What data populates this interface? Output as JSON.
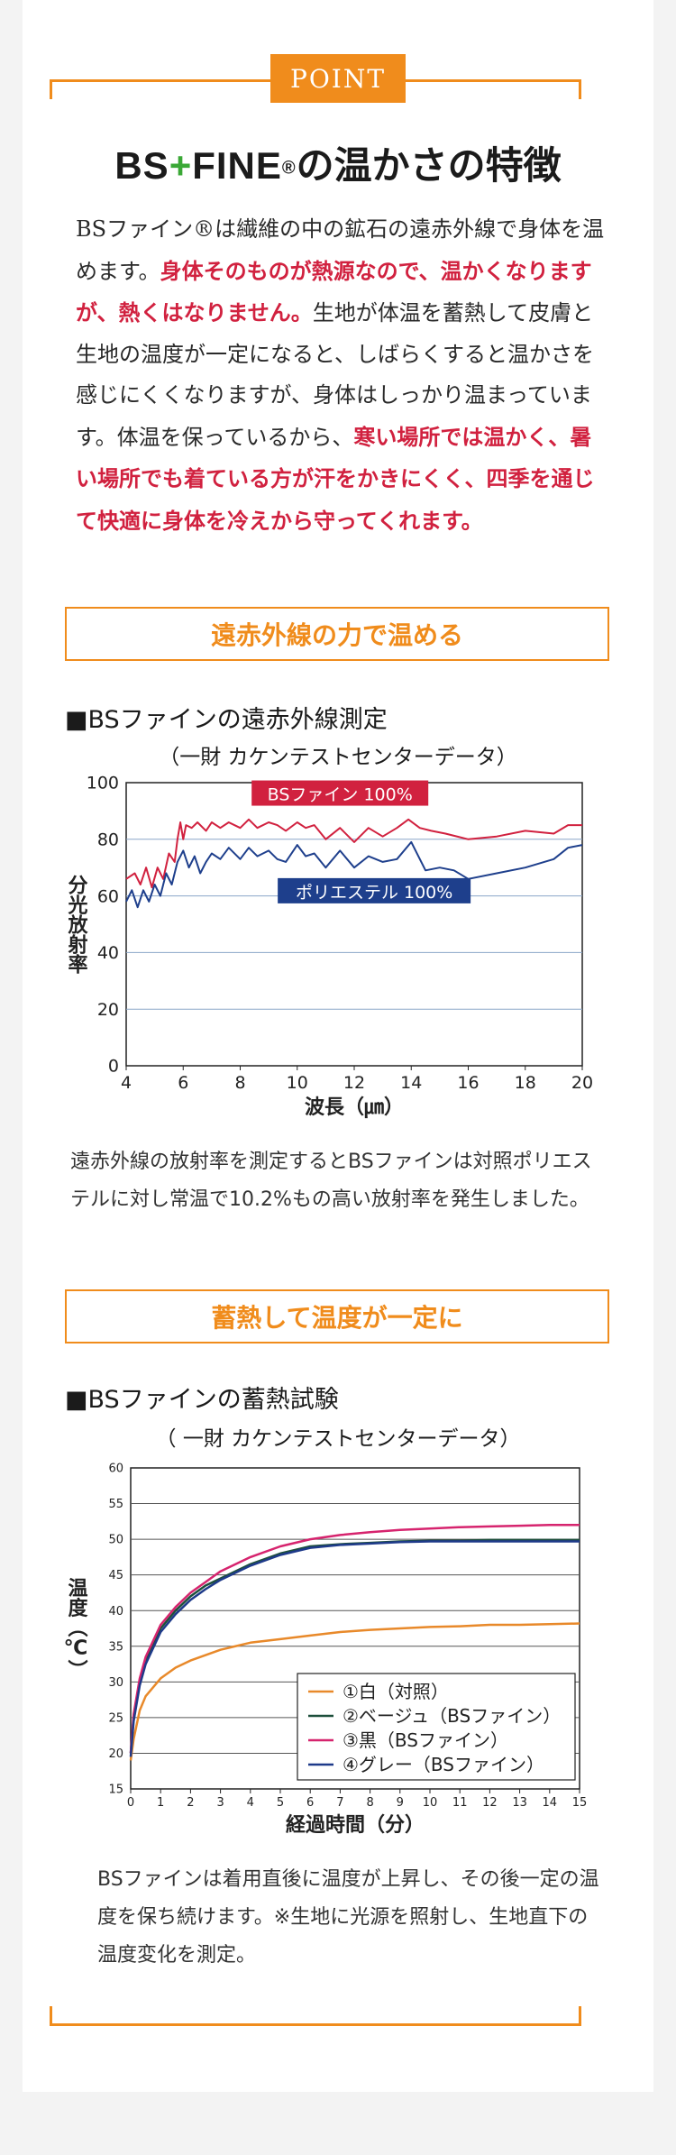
{
  "point_badge": "POINT",
  "heading": {
    "logo_bs": "BS",
    "logo_plus": "+",
    "logo_fine": "FINE",
    "logo_reg": "®",
    "rest": "の温かさの特徴"
  },
  "intro": {
    "p1": "BSファイン®は繊維の中の鉱石の遠赤外線で身体を温めます。",
    "p2_red": "身体そのものが熱源なので、温かくなりますが、熱くはなりません。",
    "p3": "生地が体温を蓄熱して皮膚と生地の温度が一定になると、しばらくすると温かさを感じにくくなりますが、身体はしっかり温まっています。体温を保っているから、",
    "p4_red": "寒い場所では温かく、暑い場所でも着ている方が汗をかきにくく、四季を通じて快適に身体を冷えから守ってくれます。"
  },
  "section1": {
    "label": "遠赤外線の力で温める",
    "chart_title": "■BSファインの遠赤外線測定",
    "chart_subtitle": "（一財 カケンテストセンターデータ）",
    "description": "遠赤外線の放射率を測定するとBSファインは対照ポリエステルに対し常温で10.2%もの高い放射率を発生しました。"
  },
  "section2": {
    "label": "蓄熱して温度が一定に",
    "chart_title": "■BSファインの蓄熱試験",
    "chart_subtitle": "（ 一財 カケンテストセンターデータ）",
    "description": "BSファインは着用直後に温度が上昇し、その後一定の温度を保ち続けます。※生地に光源を照射し、生地直下の温度変化を測定。"
  },
  "colors": {
    "accent": "#f08c1c",
    "red": "#d1213f",
    "navy": "#1e3f8c",
    "green": "#1d4f3b",
    "pink": "#d6246e",
    "orange_line": "#e8892a"
  },
  "chart_data": [
    {
      "type": "line",
      "xlabel": "波長（㎛）",
      "ylabel": "分光放射率",
      "xlim": [
        4,
        20
      ],
      "ylim": [
        0,
        100
      ],
      "xticks": [
        4,
        6,
        8,
        10,
        12,
        14,
        16,
        18,
        20
      ],
      "yticks": [
        0,
        20,
        40,
        60,
        80,
        100
      ],
      "grid": true,
      "series": [
        {
          "name": "BSファイン 100%",
          "color": "#d1213f",
          "x": [
            4,
            4.3,
            4.5,
            4.7,
            4.9,
            5.1,
            5.3,
            5.5,
            5.7,
            5.8,
            5.9,
            6.0,
            6.1,
            6.3,
            6.5,
            6.8,
            7.0,
            7.3,
            7.6,
            8.0,
            8.3,
            8.6,
            9.0,
            9.3,
            9.6,
            10.0,
            10.3,
            10.6,
            11.0,
            11.5,
            12.0,
            12.5,
            13.0,
            13.5,
            13.9,
            14.3,
            14.7,
            15.2,
            16.0,
            17.0,
            18.0,
            19.0,
            19.5,
            20.0
          ],
          "y": [
            66,
            68,
            64,
            70,
            63,
            70,
            66,
            75,
            72,
            80,
            86,
            80,
            85,
            84,
            86,
            83,
            86,
            84,
            86,
            84,
            87,
            84,
            86,
            85,
            83,
            86,
            84,
            85,
            80,
            84,
            79,
            84,
            81,
            84,
            87,
            84,
            83,
            82,
            80,
            81,
            83,
            82,
            85,
            85
          ]
        },
        {
          "name": "ポリエステル 100%",
          "color": "#1e3f8c",
          "x": [
            4,
            4.2,
            4.4,
            4.6,
            4.8,
            5.0,
            5.2,
            5.4,
            5.6,
            5.8,
            6.0,
            6.2,
            6.4,
            6.6,
            6.8,
            7.0,
            7.3,
            7.6,
            8.0,
            8.3,
            8.6,
            9.0,
            9.3,
            9.6,
            10.0,
            10.3,
            10.6,
            11.0,
            11.5,
            12.0,
            12.5,
            13.0,
            13.5,
            14.0,
            14.5,
            15.0,
            15.5,
            16.0,
            17.0,
            18.0,
            19.0,
            19.5,
            20.0
          ],
          "y": [
            58,
            62,
            56,
            62,
            58,
            64,
            60,
            68,
            64,
            72,
            76,
            70,
            74,
            68,
            72,
            75,
            73,
            77,
            73,
            77,
            74,
            76,
            73,
            72,
            78,
            74,
            75,
            70,
            76,
            70,
            74,
            72,
            73,
            79,
            69,
            70,
            69,
            66,
            68,
            70,
            73,
            77,
            78
          ]
        }
      ]
    },
    {
      "type": "line",
      "xlabel": "経過時間（分）",
      "ylabel": "温度（℃）",
      "xlim": [
        0,
        15
      ],
      "ylim": [
        15,
        60
      ],
      "xticks": [
        0,
        1,
        2,
        3,
        4,
        5,
        6,
        7,
        8,
        9,
        10,
        11,
        12,
        13,
        14,
        15
      ],
      "yticks": [
        15,
        20,
        25,
        30,
        35,
        40,
        45,
        50,
        55,
        60
      ],
      "grid": true,
      "legend": "bottom-right",
      "series": [
        {
          "name": "①白（対照）",
          "color": "#e8892a",
          "x": [
            0,
            0.1,
            0.3,
            0.5,
            1,
            1.5,
            2,
            3,
            4,
            5,
            6,
            7,
            8,
            9,
            10,
            11,
            12,
            13,
            14,
            15
          ],
          "y": [
            19,
            22,
            26,
            28,
            30.5,
            32,
            33,
            34.5,
            35.5,
            36,
            36.5,
            37,
            37.3,
            37.5,
            37.7,
            37.8,
            38,
            38,
            38.1,
            38.2
          ]
        },
        {
          "name": "②ベージュ（BSファイン）",
          "color": "#1d4f3b",
          "x": [
            0,
            0.1,
            0.3,
            0.5,
            1,
            1.5,
            2,
            2.5,
            3,
            4,
            5,
            6,
            7,
            8,
            9,
            10,
            11,
            12,
            13,
            14,
            15
          ],
          "y": [
            20,
            25,
            30,
            33,
            37.5,
            40,
            42,
            43.5,
            44.5,
            46.5,
            48,
            49,
            49.3,
            49.5,
            49.7,
            49.8,
            49.8,
            49.9,
            49.9,
            49.9,
            49.9
          ]
        },
        {
          "name": "③黒（BSファイン）",
          "color": "#d6246e",
          "x": [
            0,
            0.1,
            0.3,
            0.5,
            1,
            1.5,
            2,
            2.5,
            3,
            4,
            5,
            6,
            7,
            8,
            9,
            10,
            11,
            12,
            13,
            14,
            15
          ],
          "y": [
            20,
            25.5,
            30.5,
            33.5,
            38,
            40.5,
            42.5,
            44,
            45.5,
            47.5,
            49,
            50,
            50.6,
            51,
            51.3,
            51.5,
            51.7,
            51.8,
            51.9,
            52,
            52
          ]
        },
        {
          "name": "④グレー（BSファイン）",
          "color": "#1e3a8a",
          "x": [
            0,
            0.1,
            0.3,
            0.5,
            1,
            1.5,
            2,
            2.5,
            3,
            4,
            5,
            6,
            7,
            8,
            9,
            10,
            11,
            12,
            13,
            14,
            15
          ],
          "y": [
            19.5,
            24.5,
            29.5,
            32.5,
            37,
            39.5,
            41.5,
            43,
            44.3,
            46.3,
            47.8,
            48.8,
            49.2,
            49.4,
            49.6,
            49.7,
            49.7,
            49.7,
            49.7,
            49.7,
            49.7
          ]
        }
      ]
    }
  ]
}
